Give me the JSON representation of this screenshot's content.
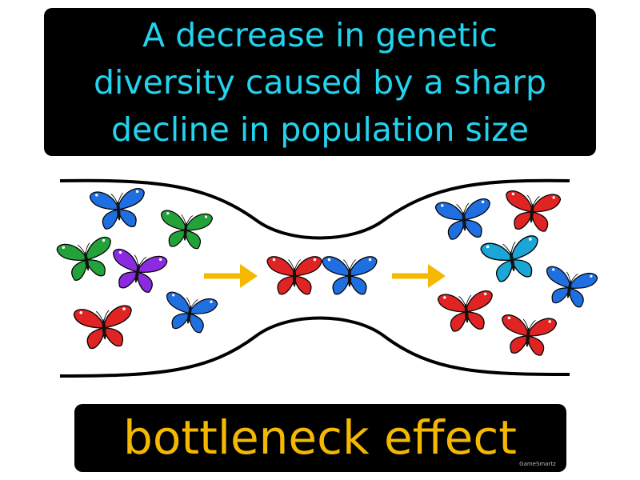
{
  "definition": {
    "lines": [
      "A decrease in genetic",
      "diversity caused by a sharp",
      "decline in population size"
    ]
  },
  "term": "bottleneck effect",
  "watermark": "GameSmartz"
}
